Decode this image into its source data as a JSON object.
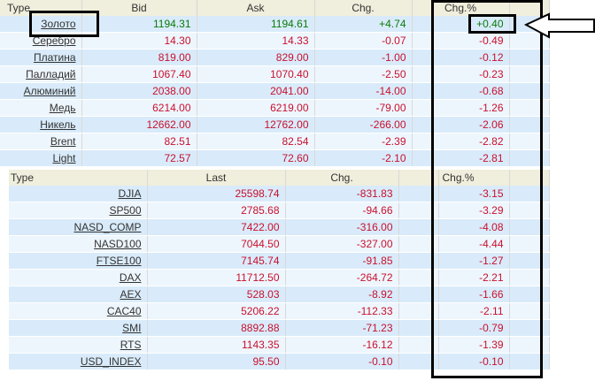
{
  "metals": {
    "headers": {
      "type": "Type",
      "bid": "Bid",
      "ask": "Ask",
      "chg": "Chg.",
      "chg_pct": "Chg.%"
    },
    "rows": [
      {
        "name": "Золото",
        "bid": "1194.31",
        "ask": "1194.61",
        "chg": "+4.74",
        "chg_pct": "+0.40"
      },
      {
        "name": "Серебро",
        "bid": "14.30",
        "ask": "14.33",
        "chg": "-0.07",
        "chg_pct": "-0.49"
      },
      {
        "name": "Платина",
        "bid": "819.00",
        "ask": "829.00",
        "chg": "-1.00",
        "chg_pct": "-0.12"
      },
      {
        "name": "Палладий",
        "bid": "1067.40",
        "ask": "1070.40",
        "chg": "-2.50",
        "chg_pct": "-0.23"
      },
      {
        "name": "Алюминий",
        "bid": "2038.00",
        "ask": "2041.00",
        "chg": "-14.00",
        "chg_pct": "-0.68"
      },
      {
        "name": "Медь",
        "bid": "6214.00",
        "ask": "6219.00",
        "chg": "-79.00",
        "chg_pct": "-1.26"
      },
      {
        "name": "Никель",
        "bid": "12662.00",
        "ask": "12762.00",
        "chg": "-266.00",
        "chg_pct": "-2.06"
      },
      {
        "name": "Brent",
        "bid": "82.51",
        "ask": "82.54",
        "chg": "-2.39",
        "chg_pct": "-2.82"
      },
      {
        "name": "Light",
        "bid": "72.57",
        "ask": "72.60",
        "chg": "-2.10",
        "chg_pct": "-2.81"
      }
    ]
  },
  "indices": {
    "headers": {
      "type": "Type",
      "last": "Last",
      "chg": "Chg.",
      "chg_pct": "Chg.%"
    },
    "rows": [
      {
        "name": "DJIA",
        "last": "25598.74",
        "chg": "-831.83",
        "chg_pct": "-3.15"
      },
      {
        "name": "SP500",
        "last": "2785.68",
        "chg": "-94.66",
        "chg_pct": "-3.29"
      },
      {
        "name": "NASD_COMP",
        "last": "7422.00",
        "chg": "-316.00",
        "chg_pct": "-4.08"
      },
      {
        "name": "NASD100",
        "last": "7044.50",
        "chg": "-327.00",
        "chg_pct": "-4.44"
      },
      {
        "name": "FTSE100",
        "last": "7145.74",
        "chg": "-91.85",
        "chg_pct": "-1.27"
      },
      {
        "name": "DAX",
        "last": "11712.50",
        "chg": "-264.72",
        "chg_pct": "-2.21"
      },
      {
        "name": "AEX",
        "last": "528.03",
        "chg": "-8.92",
        "chg_pct": "-1.66"
      },
      {
        "name": "CAC40",
        "last": "5206.22",
        "chg": "-112.33",
        "chg_pct": "-2.11"
      },
      {
        "name": "SMI",
        "last": "8892.88",
        "chg": "-71.23",
        "chg_pct": "-0.79"
      },
      {
        "name": "RTS",
        "last": "1143.35",
        "chg": "-16.12",
        "chg_pct": "-1.39"
      },
      {
        "name": "USD_INDEX",
        "last": "95.50",
        "chg": "-0.10",
        "chg_pct": "-0.10"
      }
    ]
  },
  "colors": {
    "positive": "#0a7a0a",
    "negative": "#c8102e",
    "header_bg": "#f0eedc",
    "row_bg": "#d9ebfa",
    "row_alt_bg": "#eef6fd"
  },
  "annotations": {
    "pointer_icon": "arrow-left-icon"
  }
}
